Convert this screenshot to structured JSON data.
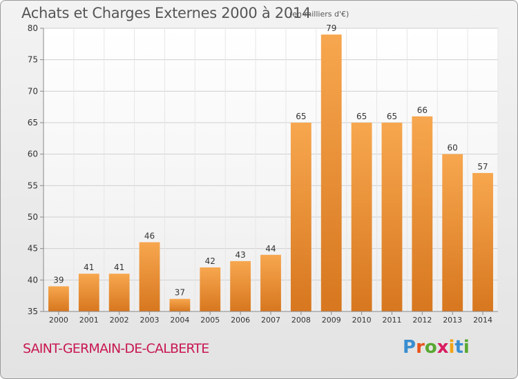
{
  "header": {
    "title": "Achats et Charges Externes 2000 à 2014",
    "unit": "(en milliers d'€)"
  },
  "commune": "SAINT-GERMAIN-DE-CALBERTE",
  "logo": {
    "text": "Proxiti",
    "colors": [
      "#3a8ed0",
      "#e8541c",
      "#58a831",
      "#d81b60",
      "#f2a413",
      "#3a8ed0",
      "#58a831"
    ]
  },
  "chart_data": {
    "type": "bar",
    "title": "Achats et Charges Externes 2000 à 2014",
    "subtitle": "(en milliers d'€)",
    "categories": [
      "2000",
      "2001",
      "2002",
      "2003",
      "2004",
      "2005",
      "2006",
      "2007",
      "2008",
      "2009",
      "2010",
      "2011",
      "2012",
      "2013",
      "2014"
    ],
    "values": [
      39,
      41,
      41,
      46,
      37,
      42,
      43,
      44,
      65,
      79,
      65,
      65,
      66,
      60,
      57
    ],
    "data_labels": [
      "39",
      "41",
      "41",
      "46",
      "37",
      "42",
      "43",
      "44",
      "65",
      "79",
      "65",
      "65",
      "66",
      "60",
      "57"
    ],
    "ylim": [
      35,
      80
    ],
    "yticks": [
      35,
      40,
      45,
      50,
      55,
      60,
      65,
      70,
      75,
      80
    ],
    "xlabel": "",
    "ylabel": "",
    "grid": true,
    "colors": {
      "bar_light": "#f7a74f",
      "bar_dark": "#d7771f",
      "grid": "#cfcfcf",
      "axis": "#888888",
      "text": "#333333"
    }
  }
}
